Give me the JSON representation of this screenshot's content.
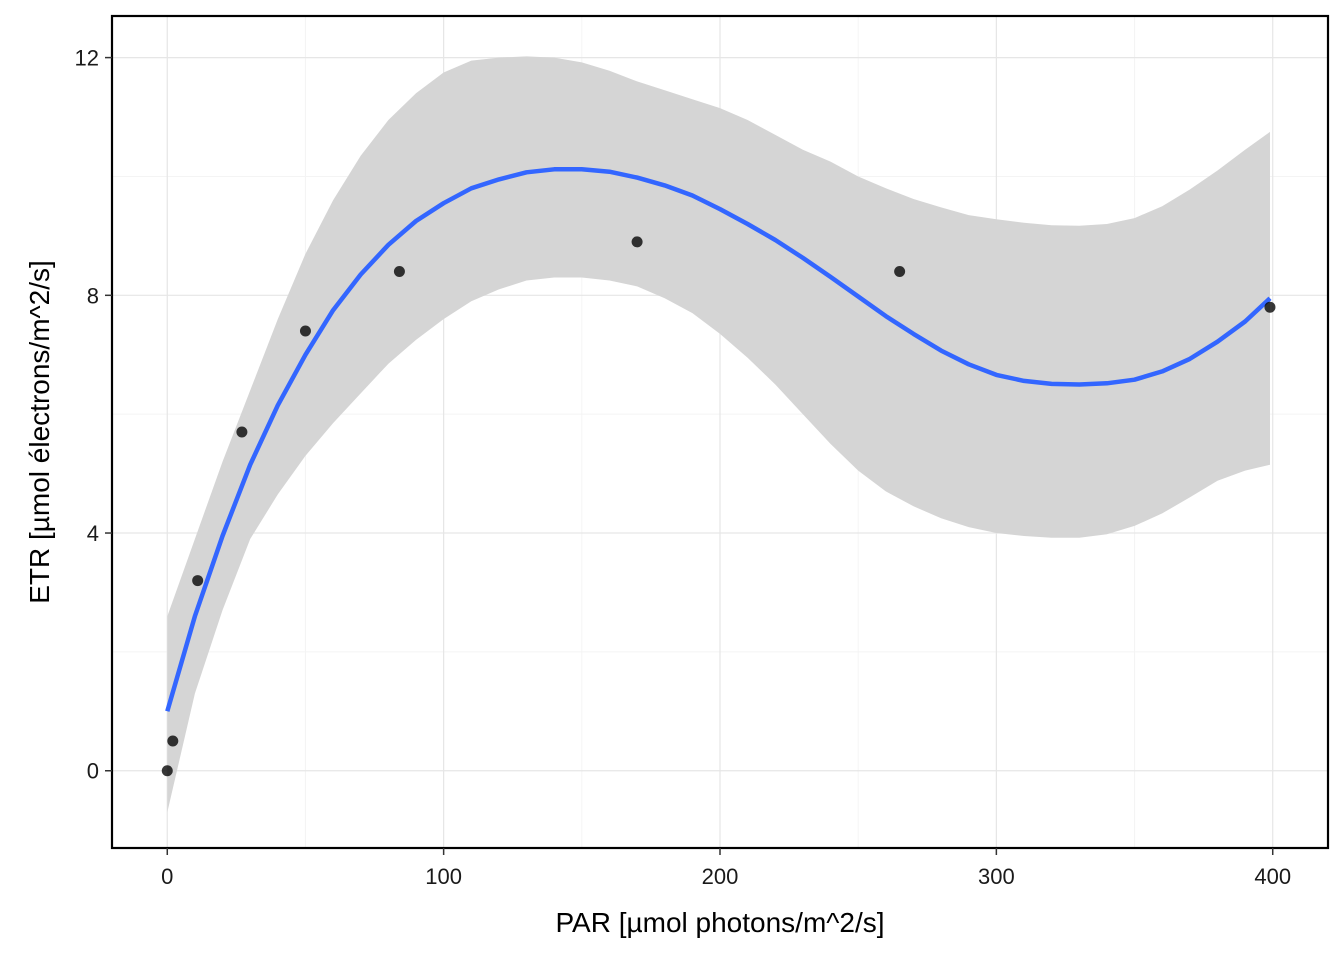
{
  "chart_data": {
    "type": "scatter",
    "title": "",
    "xlabel": "PAR  [µmol photons/m^2/s]",
    "ylabel": "ETR  [µmol électrons/m^2/s]",
    "xlim": [
      -20,
      420
    ],
    "ylim": [
      -1.3,
      12.7
    ],
    "x_ticks": [
      0,
      100,
      200,
      300,
      400
    ],
    "x_tick_labels": [
      "0",
      "100",
      "200",
      "300",
      "400"
    ],
    "y_ticks": [
      0,
      4,
      8,
      12
    ],
    "y_tick_labels": [
      "0",
      "4",
      "8",
      "12"
    ],
    "grid": true,
    "series": [
      {
        "kind": "points",
        "x": [
          0,
          2,
          11,
          27,
          50,
          84,
          170,
          265,
          399
        ],
        "y": [
          0.0,
          0.5,
          3.2,
          5.7,
          7.4,
          8.4,
          8.9,
          8.4,
          7.8
        ]
      },
      {
        "kind": "smooth-fit-line",
        "x": [
          0,
          10,
          20,
          30,
          40,
          50,
          60,
          70,
          80,
          90,
          100,
          110,
          120,
          130,
          140,
          150,
          160,
          170,
          180,
          190,
          200,
          210,
          220,
          230,
          240,
          250,
          260,
          270,
          280,
          290,
          300,
          310,
          320,
          330,
          340,
          350,
          360,
          370,
          380,
          390,
          399
        ],
        "y": [
          1.0,
          2.6,
          3.95,
          5.15,
          6.15,
          7.0,
          7.75,
          8.35,
          8.85,
          9.25,
          9.55,
          9.8,
          9.95,
          10.07,
          10.12,
          10.12,
          10.08,
          9.98,
          9.85,
          9.68,
          9.45,
          9.2,
          8.93,
          8.63,
          8.31,
          7.98,
          7.65,
          7.35,
          7.07,
          6.84,
          6.66,
          6.56,
          6.51,
          6.5,
          6.52,
          6.58,
          6.72,
          6.93,
          7.22,
          7.56,
          7.95
        ]
      },
      {
        "kind": "confidence-band",
        "x": [
          0,
          10,
          20,
          30,
          40,
          50,
          60,
          70,
          80,
          90,
          100,
          110,
          120,
          130,
          140,
          150,
          160,
          170,
          180,
          190,
          200,
          210,
          220,
          230,
          240,
          250,
          260,
          270,
          280,
          290,
          300,
          310,
          320,
          330,
          340,
          350,
          360,
          370,
          380,
          390,
          399
        ],
        "lower": [
          -0.7,
          1.3,
          2.7,
          3.9,
          4.65,
          5.3,
          5.85,
          6.35,
          6.85,
          7.25,
          7.6,
          7.9,
          8.1,
          8.25,
          8.3,
          8.3,
          8.25,
          8.15,
          7.95,
          7.7,
          7.35,
          6.95,
          6.5,
          6.0,
          5.5,
          5.05,
          4.7,
          4.45,
          4.25,
          4.1,
          4.0,
          3.95,
          3.92,
          3.92,
          3.98,
          4.12,
          4.33,
          4.6,
          4.88,
          5.05,
          5.15
        ],
        "upper": [
          2.6,
          3.9,
          5.2,
          6.4,
          7.6,
          8.7,
          9.6,
          10.35,
          10.95,
          11.4,
          11.75,
          11.95,
          12.0,
          12.02,
          12.0,
          11.92,
          11.78,
          11.6,
          11.45,
          11.3,
          11.15,
          10.95,
          10.7,
          10.45,
          10.25,
          10.0,
          9.8,
          9.62,
          9.48,
          9.35,
          9.28,
          9.22,
          9.18,
          9.17,
          9.2,
          9.3,
          9.5,
          9.78,
          10.1,
          10.45,
          10.75
        ]
      }
    ],
    "colors": {
      "band": "#d5d5d5",
      "line": "#3366ff",
      "points": "#000000",
      "grid_major": "#e6e6e6",
      "grid_minor": "#f4f4f4",
      "frame": "#000000"
    }
  }
}
